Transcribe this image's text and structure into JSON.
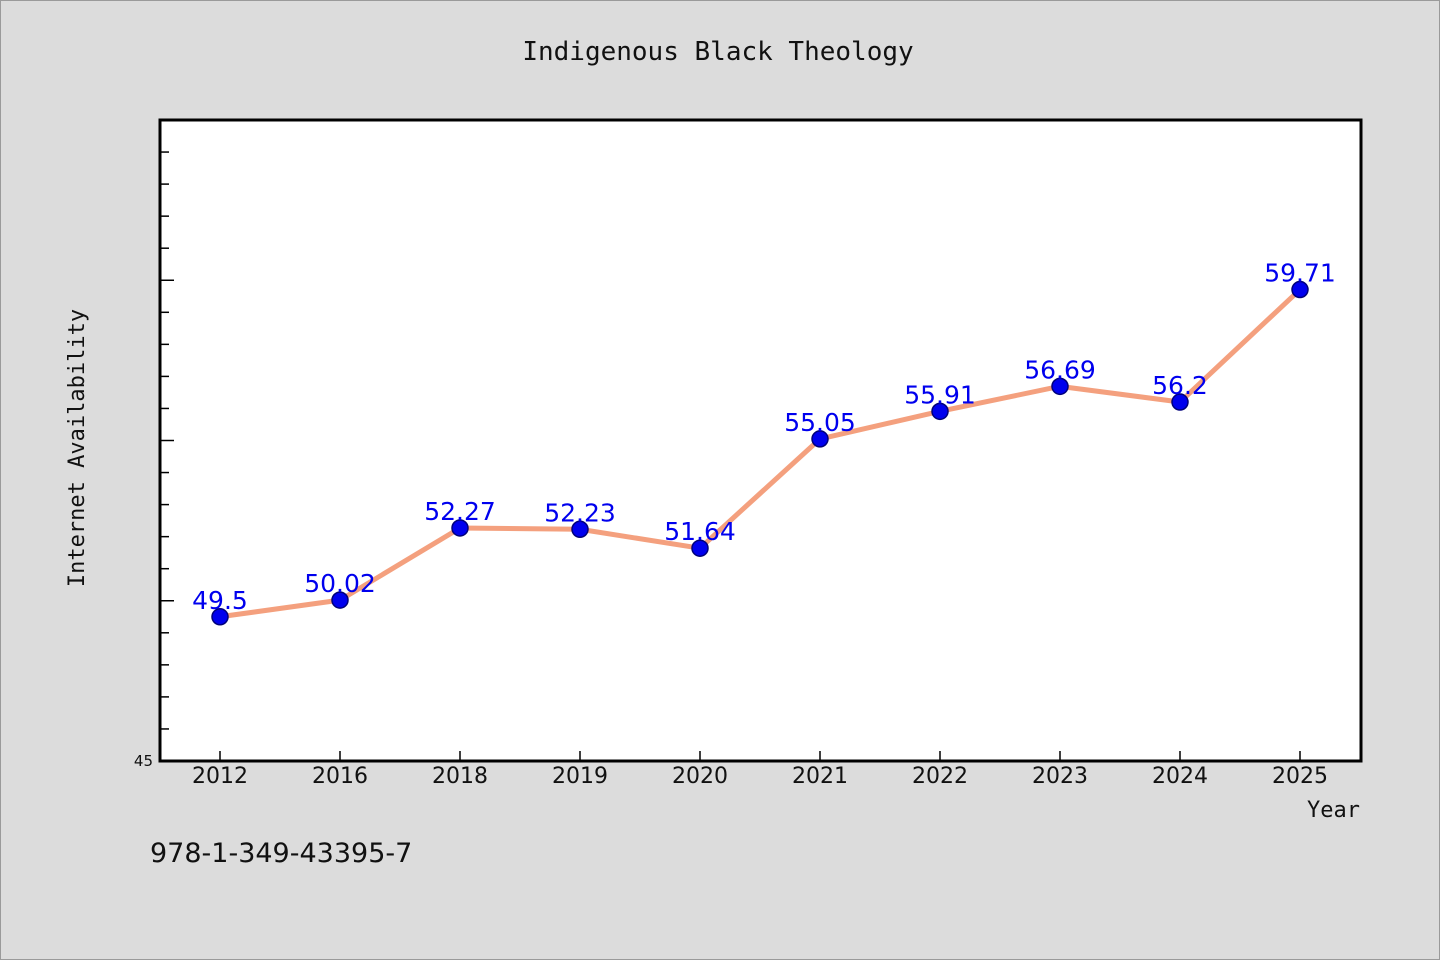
{
  "chart_data": {
    "type": "line",
    "title": "Indigenous Black Theology",
    "xlabel": "Year",
    "ylabel": "Internet Availability",
    "categories": [
      "2012",
      "2016",
      "2018",
      "2019",
      "2020",
      "2021",
      "2022",
      "2023",
      "2024",
      "2025"
    ],
    "series": [
      {
        "values": [
          49.5,
          50.02,
          52.27,
          52.23,
          51.64,
          55.05,
          55.91,
          56.69,
          56.2,
          59.71
        ],
        "data_labels": [
          "49.5",
          "50.02",
          "52.27",
          "52.23",
          "51.64",
          "55.05",
          "55.91",
          "56.69",
          "56.2",
          "59.71"
        ],
        "line_color": "#f4a07e",
        "marker_color": "#0000ee"
      }
    ],
    "ylim": [
      45,
      65
    ],
    "y_tick_labels": [
      "45"
    ],
    "grid": false,
    "legend": "none"
  },
  "footer": {
    "isbn": "978-1-349-43395-7"
  }
}
